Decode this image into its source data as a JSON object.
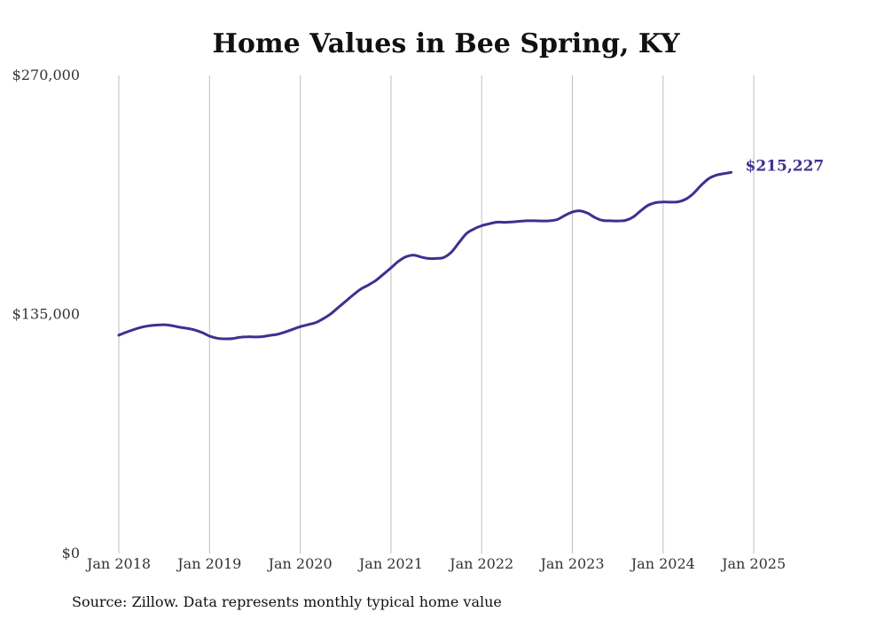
{
  "chart_data": {
    "type": "line",
    "title": "Home Values in Bee Spring, KY",
    "xlabel": "",
    "ylabel": "",
    "ylim": [
      0,
      270000
    ],
    "y_ticks": [
      {
        "value": 0,
        "label": "$0"
      },
      {
        "value": 135000,
        "label": "$135,000"
      },
      {
        "value": 270000,
        "label": "$270,000"
      }
    ],
    "x_ticks": [
      {
        "value": "2018-01",
        "label": "Jan 2018"
      },
      {
        "value": "2019-01",
        "label": "Jan 2019"
      },
      {
        "value": "2020-01",
        "label": "Jan 2020"
      },
      {
        "value": "2021-01",
        "label": "Jan 2021"
      },
      {
        "value": "2022-01",
        "label": "Jan 2022"
      },
      {
        "value": "2023-01",
        "label": "Jan 2023"
      },
      {
        "value": "2024-01",
        "label": "Jan 2024"
      },
      {
        "value": "2025-01",
        "label": "Jan 2025"
      }
    ],
    "grid": {
      "vertical": true,
      "horizontal": false
    },
    "series": [
      {
        "color": "#3b3191",
        "end_label": "$215,227",
        "points": [
          [
            "2018-01",
            123300
          ],
          [
            "2018-02",
            125000
          ],
          [
            "2018-03",
            126500
          ],
          [
            "2018-04",
            127800
          ],
          [
            "2018-05",
            128600
          ],
          [
            "2018-06",
            129000
          ],
          [
            "2018-07",
            129200
          ],
          [
            "2018-08",
            128700
          ],
          [
            "2018-09",
            127800
          ],
          [
            "2018-10",
            127200
          ],
          [
            "2018-11",
            126300
          ],
          [
            "2018-12",
            124800
          ],
          [
            "2019-01",
            122800
          ],
          [
            "2019-02",
            121600
          ],
          [
            "2019-03",
            121200
          ],
          [
            "2019-04",
            121300
          ],
          [
            "2019-05",
            122100
          ],
          [
            "2019-06",
            122400
          ],
          [
            "2019-07",
            122300
          ],
          [
            "2019-08",
            122500
          ],
          [
            "2019-09",
            123200
          ],
          [
            "2019-10",
            123800
          ],
          [
            "2019-11",
            125100
          ],
          [
            "2019-12",
            126600
          ],
          [
            "2020-01",
            128100
          ],
          [
            "2020-02",
            129200
          ],
          [
            "2020-03",
            130300
          ],
          [
            "2020-04",
            132500
          ],
          [
            "2020-05",
            135200
          ],
          [
            "2020-06",
            138800
          ],
          [
            "2020-07",
            142400
          ],
          [
            "2020-08",
            146000
          ],
          [
            "2020-09",
            149300
          ],
          [
            "2020-10",
            151600
          ],
          [
            "2020-11",
            154200
          ],
          [
            "2020-12",
            157700
          ],
          [
            "2021-01",
            161300
          ],
          [
            "2021-02",
            165000
          ],
          [
            "2021-03",
            167600
          ],
          [
            "2021-04",
            168500
          ],
          [
            "2021-05",
            167400
          ],
          [
            "2021-06",
            166600
          ],
          [
            "2021-07",
            166600
          ],
          [
            "2021-08",
            167200
          ],
          [
            "2021-09",
            170200
          ],
          [
            "2021-10",
            175600
          ],
          [
            "2021-11",
            180700
          ],
          [
            "2021-12",
            183300
          ],
          [
            "2022-01",
            185100
          ],
          [
            "2022-02",
            186200
          ],
          [
            "2022-03",
            187100
          ],
          [
            "2022-04",
            187000
          ],
          [
            "2022-05",
            187200
          ],
          [
            "2022-06",
            187600
          ],
          [
            "2022-07",
            187900
          ],
          [
            "2022-08",
            187900
          ],
          [
            "2022-09",
            187800
          ],
          [
            "2022-10",
            187900
          ],
          [
            "2022-11",
            188600
          ],
          [
            "2022-12",
            190900
          ],
          [
            "2023-01",
            192800
          ],
          [
            "2023-02",
            193500
          ],
          [
            "2023-03",
            192200
          ],
          [
            "2023-04",
            189700
          ],
          [
            "2023-05",
            188100
          ],
          [
            "2023-06",
            187900
          ],
          [
            "2023-07",
            187800
          ],
          [
            "2023-08",
            188100
          ],
          [
            "2023-09",
            189900
          ],
          [
            "2023-10",
            193400
          ],
          [
            "2023-11",
            196600
          ],
          [
            "2023-12",
            198100
          ],
          [
            "2024-01",
            198500
          ],
          [
            "2024-02",
            198400
          ],
          [
            "2024-03",
            198600
          ],
          [
            "2024-04",
            200100
          ],
          [
            "2024-05",
            203300
          ],
          [
            "2024-06",
            207800
          ],
          [
            "2024-07",
            211600
          ],
          [
            "2024-08",
            213600
          ],
          [
            "2024-09",
            214500
          ],
          [
            "2024-10",
            215227
          ]
        ]
      }
    ]
  },
  "footer": {
    "source": "Source: Zillow. Data represents monthly typical home value"
  }
}
